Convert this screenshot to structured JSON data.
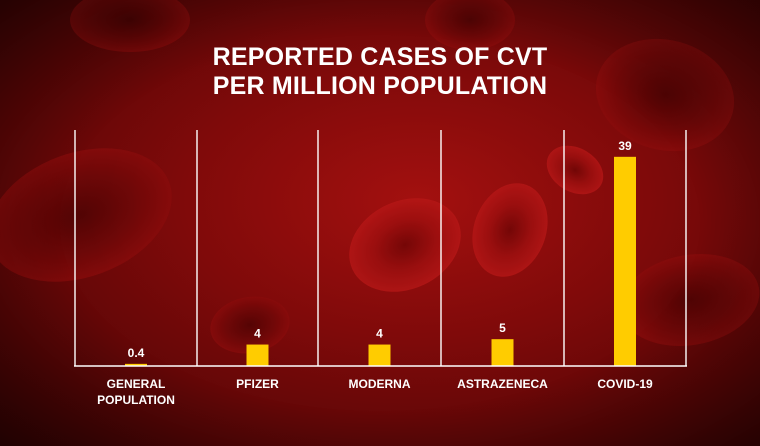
{
  "header": {
    "title_line1": "REPORTED CASES OF CVT",
    "title_line2": "PER MILLION POPULATION"
  },
  "colors": {
    "bar": "#ffcc00",
    "lines": "#ffffff",
    "background": "#8b0b0b"
  },
  "chart_data": {
    "type": "bar",
    "title": "REPORTED CASES OF CVT PER MILLION POPULATION",
    "categories": [
      [
        "GENERAL",
        "POPULATION"
      ],
      [
        "PFIZER"
      ],
      [
        "MODERNA"
      ],
      [
        "ASTRAZENECA"
      ],
      [
        "COVID-19"
      ]
    ],
    "values": [
      0.4,
      4,
      4,
      5,
      39
    ],
    "value_labels": [
      "0.4",
      "4",
      "4",
      "5",
      "39"
    ],
    "xlabel": "",
    "ylabel": "",
    "ylim": [
      0,
      44
    ],
    "grid": false,
    "legend": "none"
  }
}
